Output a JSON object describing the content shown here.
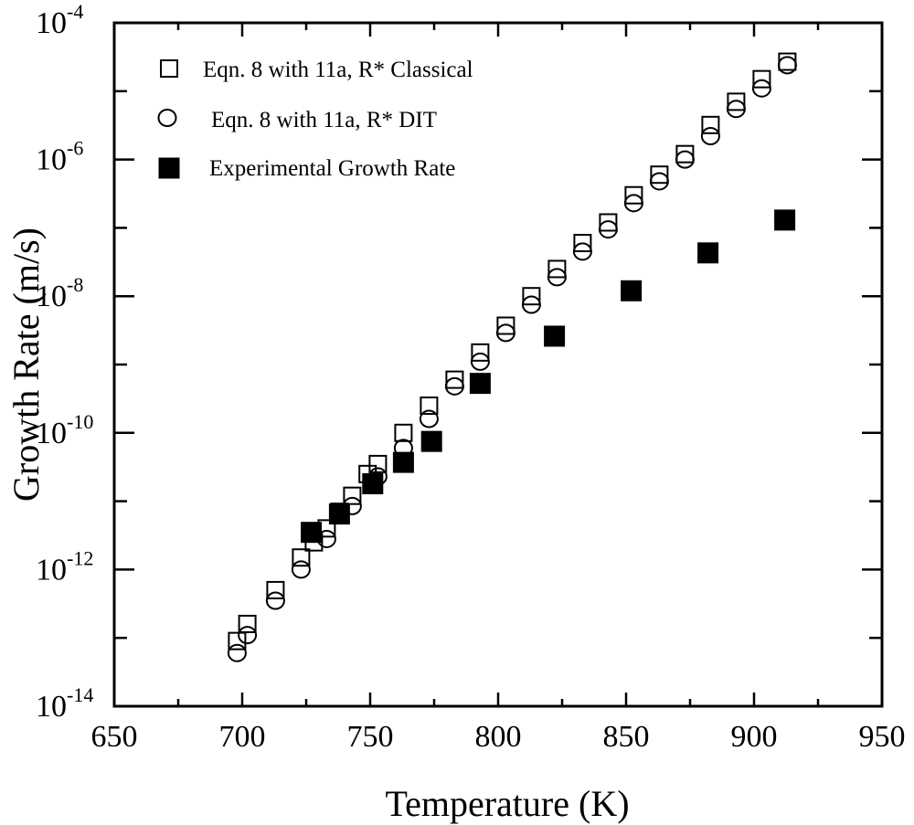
{
  "chart_data": {
    "type": "scatter",
    "title": "",
    "xlabel": "Temperature (K)",
    "ylabel": "Growth Rate (m/s)",
    "xlim": [
      650,
      950
    ],
    "ylim_log10": [
      -14,
      -4
    ],
    "yscale": "log",
    "grid": false,
    "legend_position": "top-left",
    "x_ticks": [
      {
        "value": 650,
        "label": "650"
      },
      {
        "value": 700,
        "label": "700"
      },
      {
        "value": 750,
        "label": "750"
      },
      {
        "value": 800,
        "label": "800"
      },
      {
        "value": 850,
        "label": "850"
      },
      {
        "value": 900,
        "label": "900"
      },
      {
        "value": 950,
        "label": "950"
      }
    ],
    "y_ticks": [
      {
        "exp": -14,
        "base": "10",
        "sup": "-14"
      },
      {
        "exp": -12,
        "base": "10",
        "sup": "-12"
      },
      {
        "exp": -10,
        "base": "10",
        "sup": "-10"
      },
      {
        "exp": -8,
        "base": "10",
        "sup": "-8"
      },
      {
        "exp": -6,
        "base": "10",
        "sup": "-6"
      },
      {
        "exp": -4,
        "base": "10",
        "sup": "-4"
      }
    ],
    "series": [
      {
        "name": "Eqn. 8 with 11a, R* Classical",
        "marker": "open-square",
        "points": [
          {
            "x": 698,
            "y": 9e-14
          },
          {
            "x": 702,
            "y": 1.6e-13
          },
          {
            "x": 713,
            "y": 5e-13
          },
          {
            "x": 723,
            "y": 1.5e-12
          },
          {
            "x": 728,
            "y": 2.5e-12
          },
          {
            "x": 733,
            "y": 4e-12
          },
          {
            "x": 738,
            "y": 7e-12
          },
          {
            "x": 743,
            "y": 1.2e-11
          },
          {
            "x": 749,
            "y": 2.5e-11
          },
          {
            "x": 753,
            "y": 3.5e-11
          },
          {
            "x": 763,
            "y": 1e-10
          },
          {
            "x": 773,
            "y": 2.5e-10
          },
          {
            "x": 783,
            "y": 6e-10
          },
          {
            "x": 793,
            "y": 1.5e-09
          },
          {
            "x": 803,
            "y": 3.7e-09
          },
          {
            "x": 813,
            "y": 1e-08
          },
          {
            "x": 823,
            "y": 2.5e-08
          },
          {
            "x": 833,
            "y": 6e-08
          },
          {
            "x": 843,
            "y": 1.2e-07
          },
          {
            "x": 853,
            "y": 3e-07
          },
          {
            "x": 863,
            "y": 6e-07
          },
          {
            "x": 873,
            "y": 1.2e-06
          },
          {
            "x": 883,
            "y": 3.2e-06
          },
          {
            "x": 893,
            "y": 7e-06
          },
          {
            "x": 903,
            "y": 1.5e-05
          },
          {
            "x": 913,
            "y": 2.7e-05
          }
        ]
      },
      {
        "name": "Eqn. 8 with 11a, R* DIT",
        "marker": "open-circle",
        "points": [
          {
            "x": 698,
            "y": 6e-14
          },
          {
            "x": 702,
            "y": 1.1e-13
          },
          {
            "x": 713,
            "y": 3.5e-13
          },
          {
            "x": 723,
            "y": 1e-12
          },
          {
            "x": 733,
            "y": 2.8e-12
          },
          {
            "x": 743,
            "y": 8.5e-12
          },
          {
            "x": 753,
            "y": 2.3e-11
          },
          {
            "x": 763,
            "y": 6e-11
          },
          {
            "x": 773,
            "y": 1.6e-10
          },
          {
            "x": 783,
            "y": 4.8e-10
          },
          {
            "x": 793,
            "y": 1.1e-09
          },
          {
            "x": 803,
            "y": 2.9e-09
          },
          {
            "x": 813,
            "y": 7.5e-09
          },
          {
            "x": 823,
            "y": 1.9e-08
          },
          {
            "x": 833,
            "y": 4.5e-08
          },
          {
            "x": 843,
            "y": 9.5e-08
          },
          {
            "x": 853,
            "y": 2.3e-07
          },
          {
            "x": 863,
            "y": 4.8e-07
          },
          {
            "x": 873,
            "y": 1e-06
          },
          {
            "x": 883,
            "y": 2.2e-06
          },
          {
            "x": 893,
            "y": 5.5e-06
          },
          {
            "x": 903,
            "y": 1.1e-05
          },
          {
            "x": 913,
            "y": 2.4e-05
          }
        ]
      },
      {
        "name": "Experimental Growth Rate",
        "marker": "filled-square",
        "points": [
          {
            "x": 727,
            "y": 3.5e-12
          },
          {
            "x": 738,
            "y": 6.5e-12
          },
          {
            "x": 751,
            "y": 1.8e-11
          },
          {
            "x": 763,
            "y": 3.7e-11
          },
          {
            "x": 774,
            "y": 7.5e-11
          },
          {
            "x": 793,
            "y": 5.3e-10
          },
          {
            "x": 822,
            "y": 2.6e-09
          },
          {
            "x": 852,
            "y": 1.2e-08
          },
          {
            "x": 882,
            "y": 4.3e-08
          },
          {
            "x": 912,
            "y": 1.3e-07
          }
        ]
      }
    ]
  }
}
